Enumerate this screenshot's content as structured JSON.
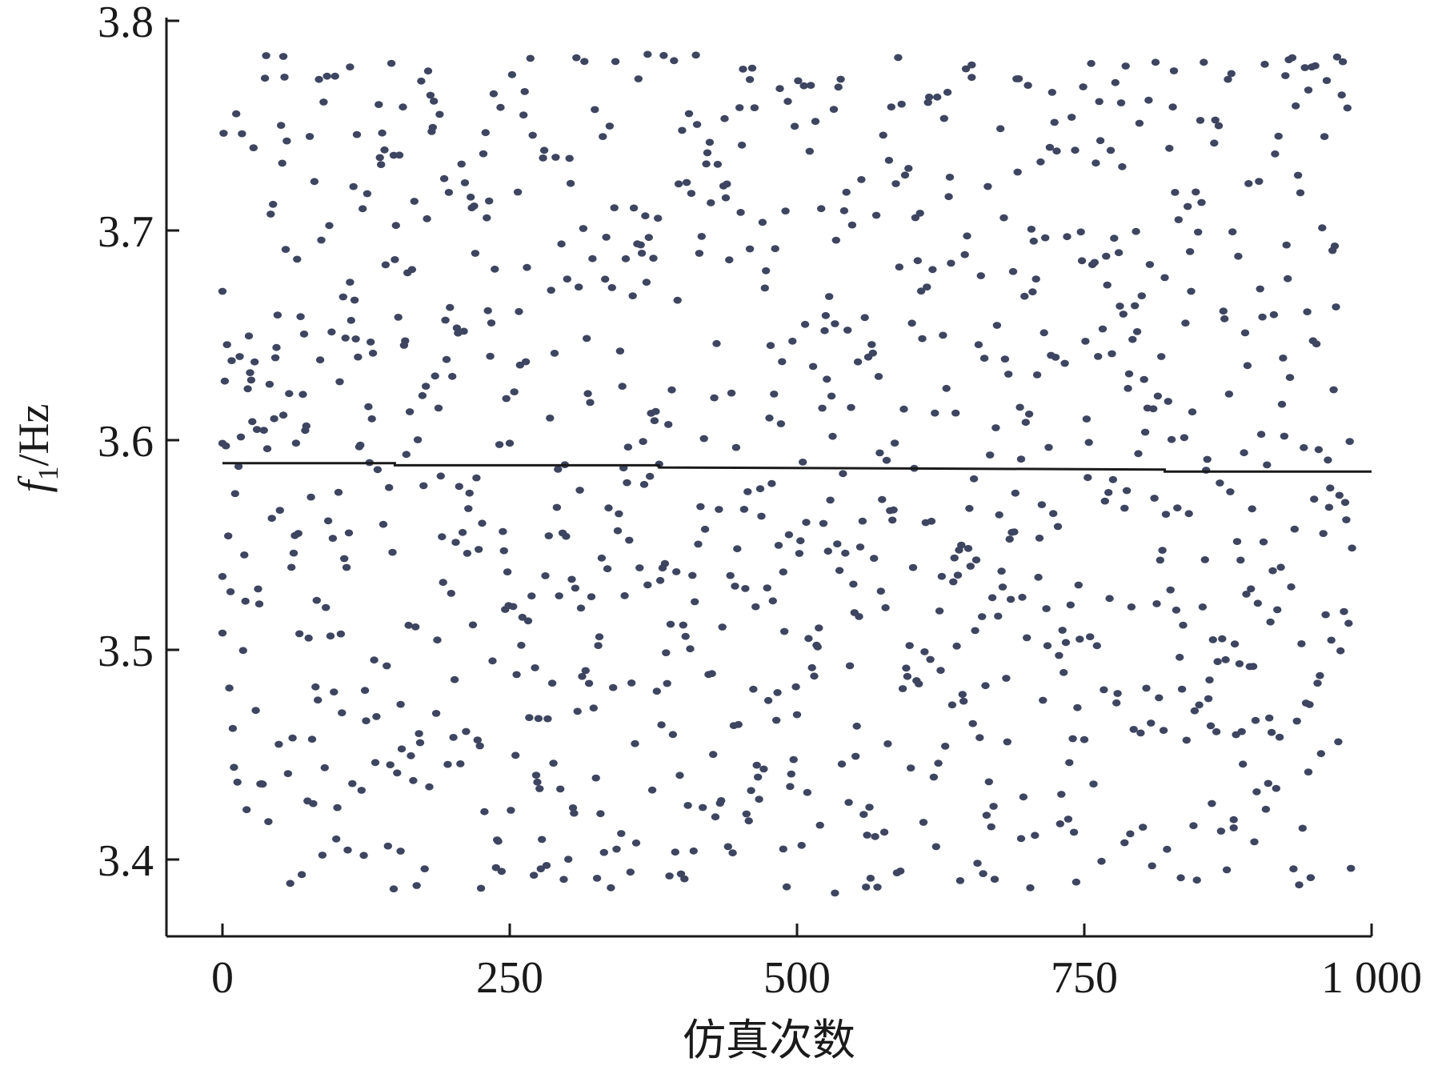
{
  "chart_data": {
    "type": "scatter",
    "xlabel": "仿真次数",
    "ylabel": {
      "symbol": "f",
      "subscript": "1",
      "unit": "/Hz"
    },
    "xlim": [
      -50,
      1000
    ],
    "ylim": [
      3.365,
      3.8
    ],
    "x_ticks": [
      0,
      250,
      500,
      750,
      1000
    ],
    "x_tick_labels": [
      "0",
      "250",
      "500",
      "750",
      "1 000"
    ],
    "y_ticks": [
      3.4,
      3.5,
      3.6,
      3.7,
      3.8
    ],
    "y_tick_labels": [
      "3.4",
      "3.5",
      "3.6",
      "3.7",
      "3.8"
    ],
    "grid": false,
    "legend": "none",
    "colors": {
      "points": "#3d4560",
      "mean_line": "#1a1a1a",
      "axes": "#1a1a1a"
    },
    "point_count": 1000,
    "value_distribution": "uniform scatter",
    "mean_line": {
      "x": [
        0,
        150,
        150,
        380,
        380,
        820,
        820,
        1000
      ],
      "y": [
        3.589,
        3.589,
        3.588,
        3.588,
        3.587,
        3.586,
        3.585,
        3.585
      ]
    },
    "points_sample": [
      {
        "x": 0,
        "y": 3.671
      },
      {
        "x": 0,
        "y": 3.535
      },
      {
        "x": 0,
        "y": 3.508
      },
      {
        "x": 53,
        "y": 3.783
      },
      {
        "x": 111,
        "y": 3.778
      },
      {
        "x": 370,
        "y": 3.784
      },
      {
        "x": 652,
        "y": 3.773
      },
      {
        "x": 459,
        "y": 3.772
      },
      {
        "x": 945,
        "y": 3.767
      },
      {
        "x": 149,
        "y": 3.386
      },
      {
        "x": 533,
        "y": 3.384
      },
      {
        "x": 155,
        "y": 3.404
      },
      {
        "x": 488,
        "y": 3.405
      },
      {
        "x": 785,
        "y": 3.408
      },
      {
        "x": 695,
        "y": 3.41
      },
      {
        "x": 880,
        "y": 3.419
      }
    ]
  }
}
